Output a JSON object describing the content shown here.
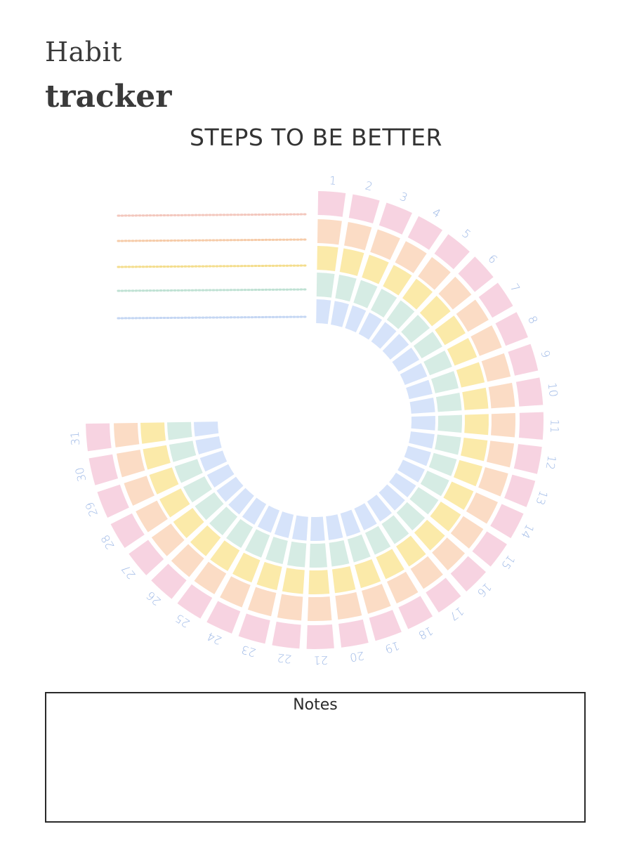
{
  "header": {
    "title_line1": "Habit",
    "title_line2": "tracker",
    "subtitle": "STEPS TO BE BETTER"
  },
  "tracker": {
    "days": [
      "1",
      "2",
      "3",
      "4",
      "5",
      "6",
      "7",
      "8",
      "9",
      "10",
      "11",
      "12",
      "13",
      "14",
      "15",
      "16",
      "17",
      "18",
      "19",
      "20",
      "21",
      "22",
      "23",
      "24",
      "25",
      "26",
      "27",
      "28",
      "29",
      "30",
      "31"
    ],
    "ring_colors": [
      "#f7d3e1",
      "#fbdcc5",
      "#fbeaa9",
      "#d6ece4",
      "#d6e3fa"
    ],
    "line_colors": [
      "#f3c7bd",
      "#f6cba8",
      "#f4dd8c",
      "#bfe1d3",
      "#c4d6f3"
    ],
    "label_color": "#9db8e6",
    "habit_names": [
      "",
      "",
      "",
      "",
      ""
    ]
  },
  "notes": {
    "title": "Notes"
  }
}
